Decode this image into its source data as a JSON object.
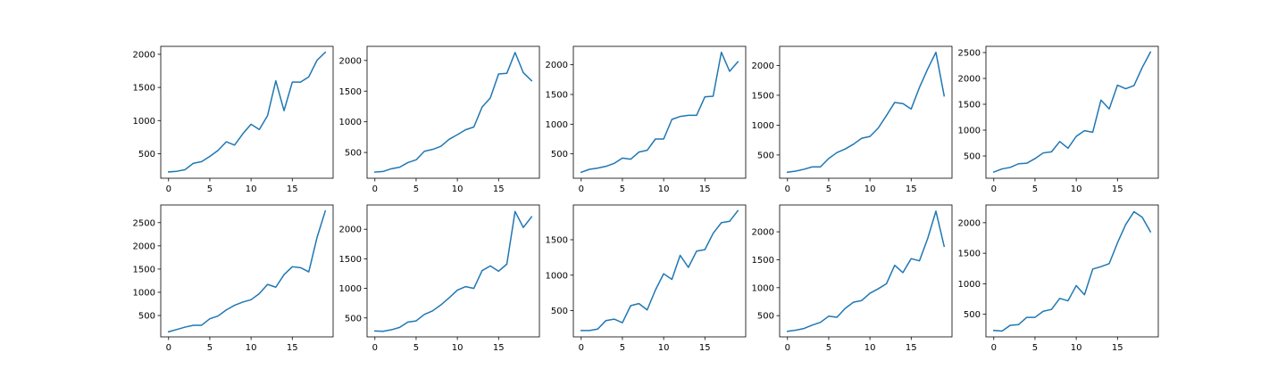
{
  "line_color": "#1f77b4",
  "chart_data": [
    {
      "type": "line",
      "x": [
        0,
        1,
        2,
        3,
        4,
        5,
        6,
        7,
        8,
        9,
        10,
        11,
        12,
        13,
        14,
        15,
        16,
        17,
        18,
        19
      ],
      "values": [
        225,
        235,
        260,
        355,
        380,
        460,
        550,
        680,
        630,
        800,
        945,
        865,
        1075,
        1600,
        1150,
        1580,
        1580,
        1660,
        1910,
        2030
      ],
      "xlim": [
        -0.95,
        19.95
      ],
      "ylim": [
        130,
        2120
      ],
      "xticks": [
        0,
        5,
        10,
        15
      ],
      "yticks": [
        500,
        1000,
        1500,
        2000
      ],
      "grid": false
    },
    {
      "type": "line",
      "x": [
        0,
        1,
        2,
        3,
        4,
        5,
        6,
        7,
        8,
        9,
        10,
        11,
        12,
        13,
        14,
        15,
        16,
        17,
        18,
        19
      ],
      "values": [
        180,
        190,
        235,
        260,
        335,
        380,
        520,
        550,
        600,
        715,
        790,
        870,
        915,
        1240,
        1390,
        1780,
        1790,
        2130,
        1800,
        1670
      ],
      "xlim": [
        -0.95,
        19.95
      ],
      "ylim": [
        80,
        2230
      ],
      "xticks": [
        0,
        5,
        10,
        15
      ],
      "yticks": [
        500,
        1000,
        1500,
        2000
      ],
      "grid": false
    },
    {
      "type": "line",
      "x": [
        0,
        1,
        2,
        3,
        4,
        5,
        6,
        7,
        8,
        9,
        10,
        11,
        12,
        13,
        14,
        15,
        16,
        17,
        18,
        19
      ],
      "values": [
        190,
        240,
        260,
        290,
        340,
        430,
        410,
        530,
        560,
        750,
        750,
        1080,
        1130,
        1150,
        1150,
        1460,
        1470,
        2210,
        1890,
        2050
      ],
      "xlim": [
        -0.95,
        19.95
      ],
      "ylim": [
        90,
        2310
      ],
      "xticks": [
        0,
        5,
        10,
        15
      ],
      "yticks": [
        500,
        1000,
        1500,
        2000
      ],
      "grid": false
    },
    {
      "type": "line",
      "x": [
        0,
        1,
        2,
        3,
        4,
        5,
        6,
        7,
        8,
        9,
        10,
        11,
        12,
        13,
        14,
        15,
        16,
        17,
        18,
        19
      ],
      "values": [
        210,
        230,
        260,
        300,
        300,
        440,
        540,
        600,
        680,
        780,
        810,
        950,
        1160,
        1380,
        1360,
        1270,
        1630,
        1940,
        2220,
        1490
      ],
      "xlim": [
        -0.95,
        19.95
      ],
      "ylim": [
        110,
        2320
      ],
      "xticks": [
        0,
        5,
        10,
        15
      ],
      "yticks": [
        500,
        1000,
        1500,
        2000
      ],
      "grid": false
    },
    {
      "type": "line",
      "x": [
        0,
        1,
        2,
        3,
        4,
        5,
        6,
        7,
        8,
        9,
        10,
        11,
        12,
        13,
        14,
        15,
        16,
        17,
        18,
        19
      ],
      "values": [
        190,
        250,
        280,
        350,
        360,
        450,
        560,
        580,
        780,
        650,
        880,
        990,
        960,
        1580,
        1410,
        1870,
        1800,
        1860,
        2210,
        2510
      ],
      "xlim": [
        -0.95,
        19.95
      ],
      "ylim": [
        70,
        2620
      ],
      "xticks": [
        0,
        5,
        10,
        15
      ],
      "yticks": [
        500,
        1000,
        1500,
        2000,
        2500
      ],
      "grid": false
    },
    {
      "type": "line",
      "x": [
        0,
        1,
        2,
        3,
        4,
        5,
        6,
        7,
        8,
        9,
        10,
        11,
        12,
        13,
        14,
        15,
        16,
        17,
        18,
        19
      ],
      "values": [
        150,
        200,
        250,
        290,
        290,
        430,
        490,
        620,
        720,
        790,
        840,
        970,
        1170,
        1110,
        1380,
        1550,
        1530,
        1440,
        2180,
        2750
      ],
      "xlim": [
        -0.95,
        19.95
      ],
      "ylim": [
        40,
        2880
      ],
      "xticks": [
        0,
        5,
        10,
        15
      ],
      "yticks": [
        500,
        1000,
        1500,
        2000,
        2500
      ],
      "grid": false
    },
    {
      "type": "line",
      "x": [
        0,
        1,
        2,
        3,
        4,
        5,
        6,
        7,
        8,
        9,
        10,
        11,
        12,
        13,
        14,
        15,
        16,
        17,
        18,
        19
      ],
      "values": [
        280,
        275,
        300,
        340,
        430,
        450,
        560,
        620,
        720,
        840,
        970,
        1030,
        1000,
        1300,
        1380,
        1290,
        1410,
        2300,
        2030,
        2210
      ],
      "xlim": [
        -0.95,
        19.95
      ],
      "ylim": [
        180,
        2410
      ],
      "xticks": [
        0,
        5,
        10,
        15
      ],
      "yticks": [
        500,
        1000,
        1500,
        2000
      ],
      "grid": false
    },
    {
      "type": "line",
      "x": [
        0,
        1,
        2,
        3,
        4,
        5,
        6,
        7,
        8,
        9,
        10,
        11,
        12,
        13,
        14,
        15,
        16,
        17,
        18,
        19
      ],
      "values": [
        220,
        220,
        240,
        360,
        380,
        330,
        570,
        600,
        510,
        790,
        1020,
        940,
        1280,
        1110,
        1340,
        1360,
        1590,
        1740,
        1760,
        1910
      ],
      "xlim": [
        -0.95,
        19.95
      ],
      "ylim": [
        130,
        1990
      ],
      "xticks": [
        0,
        5,
        10,
        15
      ],
      "yticks": [
        500,
        1000,
        1500
      ],
      "grid": false
    },
    {
      "type": "line",
      "x": [
        0,
        1,
        2,
        3,
        4,
        5,
        6,
        7,
        8,
        9,
        10,
        11,
        12,
        13,
        14,
        15,
        16,
        17,
        18,
        19
      ],
      "values": [
        220,
        240,
        270,
        330,
        380,
        490,
        470,
        630,
        740,
        770,
        900,
        980,
        1070,
        1400,
        1270,
        1520,
        1480,
        1880,
        2370,
        1740
      ],
      "xlim": [
        -0.95,
        19.95
      ],
      "ylim": [
        120,
        2480
      ],
      "xticks": [
        0,
        5,
        10,
        15
      ],
      "yticks": [
        500,
        1000,
        1500,
        2000
      ],
      "grid": false
    },
    {
      "type": "line",
      "x": [
        0,
        1,
        2,
        3,
        4,
        5,
        6,
        7,
        8,
        9,
        10,
        11,
        12,
        13,
        14,
        15,
        16,
        17,
        18,
        19
      ],
      "values": [
        235,
        225,
        320,
        330,
        450,
        450,
        550,
        580,
        760,
        720,
        970,
        820,
        1240,
        1280,
        1330,
        1670,
        1970,
        2180,
        2090,
        1850
      ],
      "xlim": [
        -0.95,
        19.95
      ],
      "ylim": [
        130,
        2290
      ],
      "xticks": [
        0,
        5,
        10,
        15
      ],
      "yticks": [
        500,
        1000,
        1500,
        2000
      ],
      "grid": false
    }
  ]
}
